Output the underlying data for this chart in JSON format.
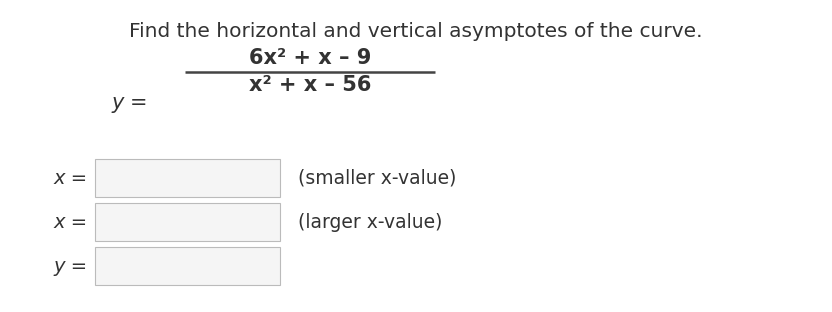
{
  "title": "Find the horizontal and vertical asymptotes of the curve.",
  "title_fontsize": 14.5,
  "formula_numerator": "6x² + x – 9",
  "formula_denominator": "x² + x – 56",
  "row1_label": "x =",
  "row1_annot": "(smaller x-value)",
  "row2_label": "x =",
  "row2_annot": "(larger x-value)",
  "row3_label": "y =",
  "background_color": "#ffffff",
  "text_color": "#333333",
  "box_edge_color": "#bbbbbb",
  "box_face_color": "#f5f5f5",
  "font_formula_size": 15,
  "font_label_size": 14,
  "font_annot_size": 13.5,
  "title_color": "#333333"
}
